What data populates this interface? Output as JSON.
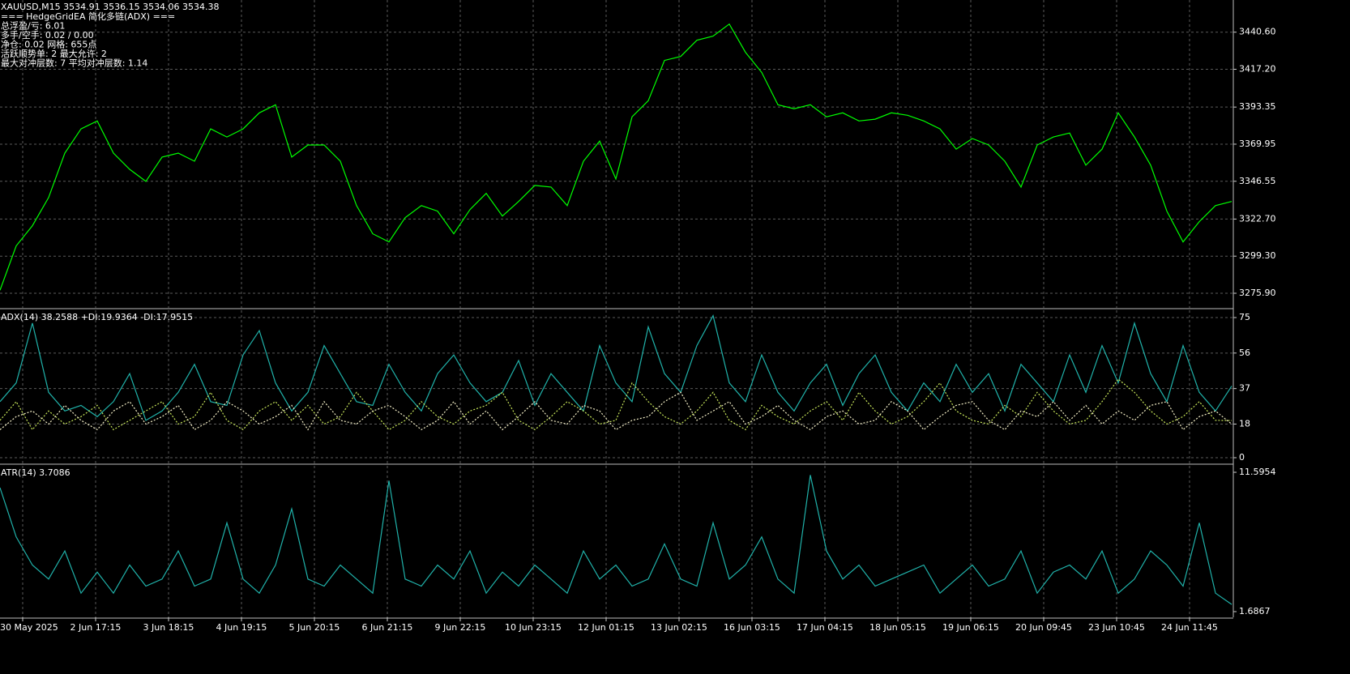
{
  "chart_data": [
    {
      "type": "line",
      "title": "XAUUSD,M15  3534.91 3536.15 3534.06 3534.38",
      "annotations": [
        "=== HedgeGridEA 简化多链(ADX) ===",
        "总浮盈/亏: 6.01",
        "多手/空手: 0.02 / 0.00",
        "净仓: 0.02  网格: 655点",
        "活跃顺势单: 2  最大允许: 2",
        "最大对冲层数: 7  平均对冲层数: 1.14"
      ],
      "ylim": [
        3266.7,
        3460.9
      ],
      "yticks": [
        {
          "value": 3440.6,
          "label": "3440.60"
        },
        {
          "value": 3417.2,
          "label": "3417.20"
        },
        3393.35,
        3369.95,
        3346.55,
        {
          "value": 3322.7,
          "label": "3322.70"
        },
        {
          "value": 3299.3,
          "label": "3299.30"
        },
        {
          "value": 3275.9,
          "label": "3275.90"
        }
      ],
      "grid": true,
      "series": [
        {
          "color": "#00ff00",
          "values": [
            3277.8,
            3305.8,
            3318.5,
            3336.3,
            3364.3,
            3379.6,
            3384.6,
            3364.3,
            3354.1,
            3346.5,
            3361.8,
            3364.3,
            3359.2,
            3379.6,
            3374.5,
            3379.6,
            3389.7,
            3394.8,
            3361.8,
            3369.4,
            3369.4,
            3359.2,
            3331.2,
            3313.4,
            3308.3,
            3323.6,
            3331.2,
            3327.7,
            3313.4,
            3328.7,
            3338.9,
            3324.6,
            3333.8,
            3343.9,
            3342.9,
            3331.2,
            3359.2,
            3371.9,
            3348.0,
            3387.2,
            3397.4,
            3422.8,
            3425.3,
            3435.5,
            3438.1,
            3445.7,
            3427.9,
            3415.2,
            3394.8,
            3392.3,
            3394.8,
            3387.2,
            3389.7,
            3384.6,
            3385.7,
            3389.7,
            3388.2,
            3384.6,
            3379.6,
            3366.8,
            3373.5,
            3369.4,
            3359.2,
            3342.9,
            3369.4,
            3374.5,
            3377.0,
            3356.7,
            3366.8,
            3389.7,
            3374.5,
            3356.7,
            3327.7,
            3308.3,
            3321.1,
            3331.2,
            3333.8
          ]
        }
      ]
    },
    {
      "type": "line",
      "title": "ADX(14) 38.2588 +DI:19.9364 -DI:17.9515",
      "ylim": [
        0,
        78
      ],
      "yticks": [
        75,
        56,
        37,
        18,
        0
      ],
      "grid": true,
      "series": [
        {
          "color": "#20b2aa",
          "values": [
            30,
            40,
            72,
            35,
            25,
            28,
            22,
            30,
            45,
            20,
            25,
            35,
            50,
            30,
            28,
            55,
            68,
            40,
            25,
            35,
            60,
            45,
            30,
            28,
            50,
            35,
            25,
            45,
            55,
            40,
            30,
            35,
            52,
            28,
            45,
            35,
            25,
            60,
            40,
            30,
            70,
            45,
            35,
            60,
            76,
            40,
            30,
            55,
            35,
            25,
            40,
            50,
            28,
            45,
            55,
            35,
            25,
            40,
            30,
            50,
            35,
            45,
            25,
            50,
            40,
            30,
            55,
            35,
            60,
            40,
            72,
            45,
            30,
            60,
            35,
            25,
            38.3
          ]
        },
        {
          "color": "#c8e65a",
          "dashed": true,
          "values": [
            20,
            30,
            15,
            25,
            18,
            22,
            28,
            15,
            20,
            25,
            30,
            18,
            22,
            35,
            20,
            15,
            25,
            30,
            20,
            28,
            18,
            22,
            35,
            25,
            15,
            20,
            30,
            22,
            18,
            25,
            28,
            35,
            20,
            15,
            22,
            30,
            25,
            18,
            20,
            40,
            30,
            22,
            18,
            25,
            35,
            20,
            15,
            28,
            22,
            18,
            25,
            30,
            20,
            35,
            25,
            18,
            22,
            30,
            40,
            25,
            20,
            18,
            28,
            22,
            35,
            25,
            18,
            20,
            30,
            42,
            35,
            25,
            18,
            22,
            30,
            20,
            19.9
          ]
        },
        {
          "color": "#f5f0c8",
          "dashed": true,
          "values": [
            15,
            22,
            25,
            18,
            28,
            20,
            15,
            25,
            30,
            18,
            22,
            28,
            15,
            20,
            30,
            25,
            18,
            22,
            28,
            15,
            30,
            20,
            18,
            25,
            28,
            22,
            15,
            20,
            30,
            18,
            25,
            15,
            22,
            30,
            20,
            18,
            28,
            25,
            15,
            20,
            22,
            30,
            35,
            20,
            25,
            30,
            18,
            22,
            28,
            20,
            15,
            22,
            25,
            18,
            20,
            30,
            25,
            15,
            22,
            28,
            30,
            20,
            15,
            25,
            22,
            30,
            20,
            28,
            18,
            25,
            20,
            28,
            30,
            15,
            22,
            25,
            18
          ]
        }
      ]
    },
    {
      "type": "line",
      "title": "ATR(14) 3.7086",
      "ylim": [
        1.6867,
        11.5954
      ],
      "yticks": [
        11.5954,
        1.6867
      ],
      "grid": false,
      "series": [
        {
          "color": "#20b2aa",
          "values": [
            10.5,
            7,
            5,
            4,
            6,
            3,
            4.5,
            3,
            5,
            3.5,
            4,
            6,
            3.5,
            4,
            8,
            4,
            3,
            5,
            9,
            4,
            3.5,
            5,
            4,
            3,
            11,
            4,
            3.5,
            5,
            4,
            6,
            3,
            4.5,
            3.5,
            5,
            4,
            3,
            6,
            4,
            5,
            3.5,
            4,
            6.5,
            4,
            3.5,
            8,
            4,
            5,
            7,
            4,
            3,
            11.4,
            6,
            4,
            5,
            3.5,
            4,
            4.5,
            5,
            3,
            4,
            5,
            3.5,
            4,
            6,
            3,
            4.5,
            5,
            4,
            6,
            3,
            4,
            6,
            5,
            3.5,
            8,
            3,
            2.2
          ]
        }
      ]
    }
  ],
  "time_axis": [
    "30 May 2025",
    "2 Jun 17:15",
    "3 Jun 18:15",
    "4 Jun 19:15",
    "5 Jun 20:15",
    "6 Jun 21:15",
    "9 Jun 22:15",
    "10 Jun 23:15",
    "12 Jun 01:15",
    "13 Jun 02:15",
    "16 Jun 03:15",
    "17 Jun 04:15",
    "18 Jun 05:15",
    "19 Jun 06:15",
    "20 Jun 09:45",
    "23 Jun 10:45",
    "24 Jun 11:45"
  ]
}
